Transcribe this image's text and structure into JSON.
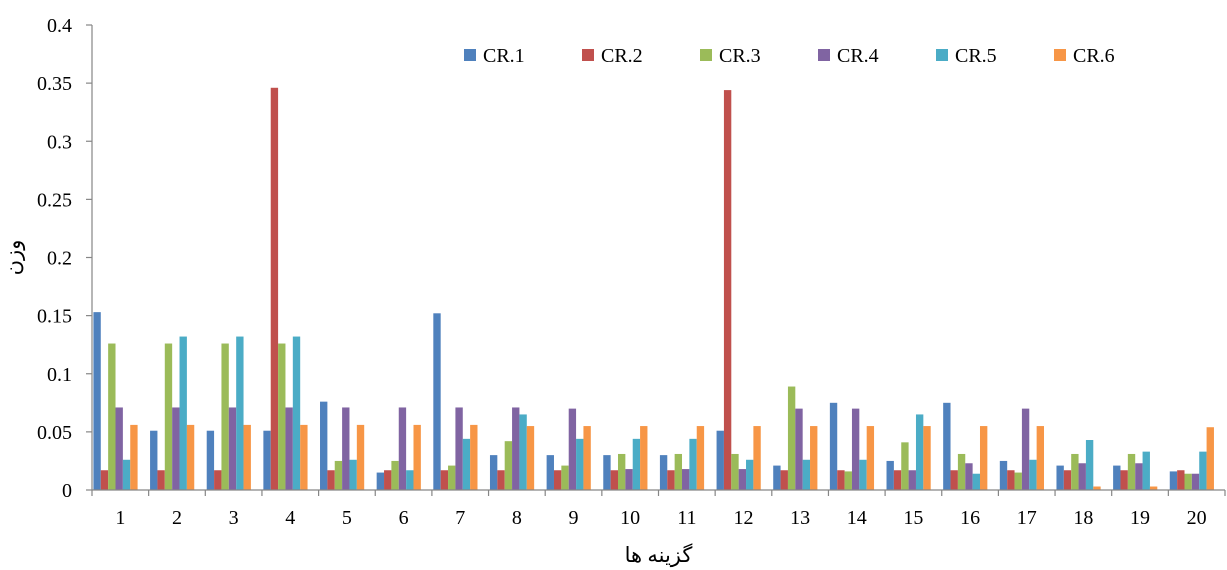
{
  "chart_data": {
    "type": "bar",
    "title": "",
    "xlabel": "گزینه ها",
    "ylabel": "وزن",
    "ylim": [
      0,
      0.4
    ],
    "yticks": [
      "0",
      "0.05",
      "0.1",
      "0.15",
      "0.2",
      "0.25",
      "0.3",
      "0.35",
      "0.4"
    ],
    "grid": false,
    "legend_position": "top-right",
    "categories": [
      "1",
      "2",
      "3",
      "4",
      "5",
      "6",
      "7",
      "8",
      "9",
      "10",
      "11",
      "12",
      "13",
      "14",
      "15",
      "16",
      "17",
      "18",
      "19",
      "20"
    ],
    "series": [
      {
        "name": "CR.1",
        "color": "#4F81BD",
        "values": [
          0.153,
          0.051,
          0.051,
          0.051,
          0.076,
          0.015,
          0.152,
          0.03,
          0.03,
          0.03,
          0.03,
          0.051,
          0.021,
          0.075,
          0.025,
          0.075,
          0.025,
          0.021,
          0.021,
          0.016
        ]
      },
      {
        "name": "CR.2",
        "color": "#C0504D",
        "values": [
          0.017,
          0.017,
          0.017,
          0.346,
          0.017,
          0.017,
          0.017,
          0.017,
          0.017,
          0.017,
          0.017,
          0.344,
          0.017,
          0.017,
          0.017,
          0.017,
          0.017,
          0.017,
          0.017,
          0.017
        ]
      },
      {
        "name": "CR.3",
        "color": "#9BBB59",
        "values": [
          0.126,
          0.126,
          0.126,
          0.126,
          0.025,
          0.025,
          0.021,
          0.042,
          0.021,
          0.031,
          0.031,
          0.031,
          0.089,
          0.016,
          0.041,
          0.031,
          0.015,
          0.031,
          0.031,
          0.014
        ]
      },
      {
        "name": "CR.4",
        "color": "#8064A2",
        "values": [
          0.071,
          0.071,
          0.071,
          0.071,
          0.071,
          0.071,
          0.071,
          0.071,
          0.07,
          0.018,
          0.018,
          0.018,
          0.07,
          0.07,
          0.017,
          0.023,
          0.07,
          0.023,
          0.023,
          0.014
        ]
      },
      {
        "name": "CR.5",
        "color": "#4BACC6",
        "values": [
          0.026,
          0.132,
          0.132,
          0.132,
          0.026,
          0.017,
          0.044,
          0.065,
          0.044,
          0.044,
          0.044,
          0.026,
          0.026,
          0.026,
          0.065,
          0.014,
          0.026,
          0.043,
          0.033,
          0.033
        ]
      },
      {
        "name": "CR.6",
        "color": "#F79646",
        "values": [
          0.056,
          0.056,
          0.056,
          0.056,
          0.056,
          0.056,
          0.056,
          0.055,
          0.055,
          0.055,
          0.055,
          0.055,
          0.055,
          0.055,
          0.055,
          0.055,
          0.055,
          0.003,
          0.003,
          0.054
        ]
      }
    ]
  },
  "colors": {
    "axis": "#868686",
    "text": "#000000"
  }
}
